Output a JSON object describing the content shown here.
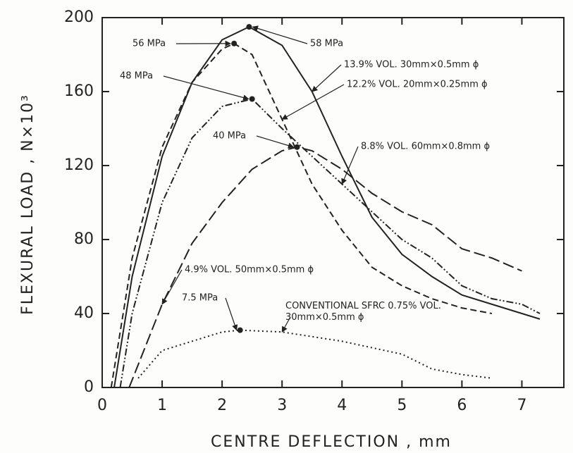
{
  "chart_data": {
    "type": "line",
    "x_label": "CENTRE DEFLECTION , mm",
    "y_label": "FLEXURAL LOAD , N×10³",
    "xlim": [
      0,
      7.7
    ],
    "ylim": [
      0,
      200
    ],
    "xticks": [
      0,
      1,
      2,
      3,
      4,
      5,
      6,
      7
    ],
    "yticks": [
      0,
      40,
      80,
      120,
      160,
      200
    ],
    "series": [
      {
        "name": "13.9% VOL. 30mm×0.5mm ϕ",
        "peak_label": "58 MPa",
        "color": "#222222",
        "dash": "solid",
        "x": [
          0.2,
          0.5,
          1,
          1.5,
          2,
          2.45,
          3,
          3.5,
          4,
          4.5,
          5,
          5.5,
          6,
          6.5,
          7,
          7.3
        ],
        "values": [
          0,
          60,
          125,
          165,
          188,
          195,
          185,
          160,
          125,
          92,
          72,
          60,
          50,
          45,
          40,
          37
        ]
      },
      {
        "name": "12.2% VOL. 20mm×0.25mm ϕ",
        "peak_label": "56 MPa",
        "color": "#222222",
        "dash": "dashed",
        "x": [
          0.15,
          0.5,
          1,
          1.5,
          2,
          2.2,
          2.5,
          3,
          3.5,
          4,
          4.5,
          5,
          5.5,
          6,
          6.5
        ],
        "values": [
          0,
          70,
          130,
          165,
          183,
          186,
          180,
          145,
          110,
          85,
          65,
          55,
          48,
          43,
          40
        ]
      },
      {
        "name": "8.8% VOL. 60mm×0.8mm ϕ",
        "peak_label": "48 MPa",
        "color": "#222222",
        "dash": "dash-dot-dot",
        "x": [
          0.3,
          0.5,
          1,
          1.5,
          2,
          2.5,
          3,
          3.5,
          4,
          4.5,
          5,
          5.5,
          6,
          6.5,
          7,
          7.3
        ],
        "values": [
          0,
          40,
          100,
          135,
          152,
          156,
          140,
          125,
          110,
          95,
          80,
          70,
          55,
          48,
          45,
          40
        ]
      },
      {
        "name": "4.9% VOL. 50mm×0.5mm ϕ",
        "peak_label": "40 MPa",
        "color": "#222222",
        "dash": "long-dash",
        "x": [
          0.45,
          1,
          1.5,
          2,
          2.5,
          3,
          3.25,
          3.5,
          4,
          4.5,
          5,
          5.5,
          6,
          6.5,
          7
        ],
        "values": [
          0,
          45,
          78,
          100,
          118,
          128,
          130,
          128,
          118,
          105,
          95,
          88,
          75,
          70,
          63
        ]
      },
      {
        "name": "CONVENTIONAL SFRC 0.75% VOL. 30mm×0.5mm ϕ",
        "peak_label": "7.5 MPa",
        "color": "#222222",
        "dash": "dotted",
        "x": [
          0.6,
          1,
          1.5,
          2,
          2.3,
          3,
          4,
          5,
          5.5,
          6,
          6.5
        ],
        "values": [
          5,
          20,
          25,
          30,
          31,
          30,
          25,
          18,
          10,
          7,
          5
        ]
      }
    ]
  }
}
